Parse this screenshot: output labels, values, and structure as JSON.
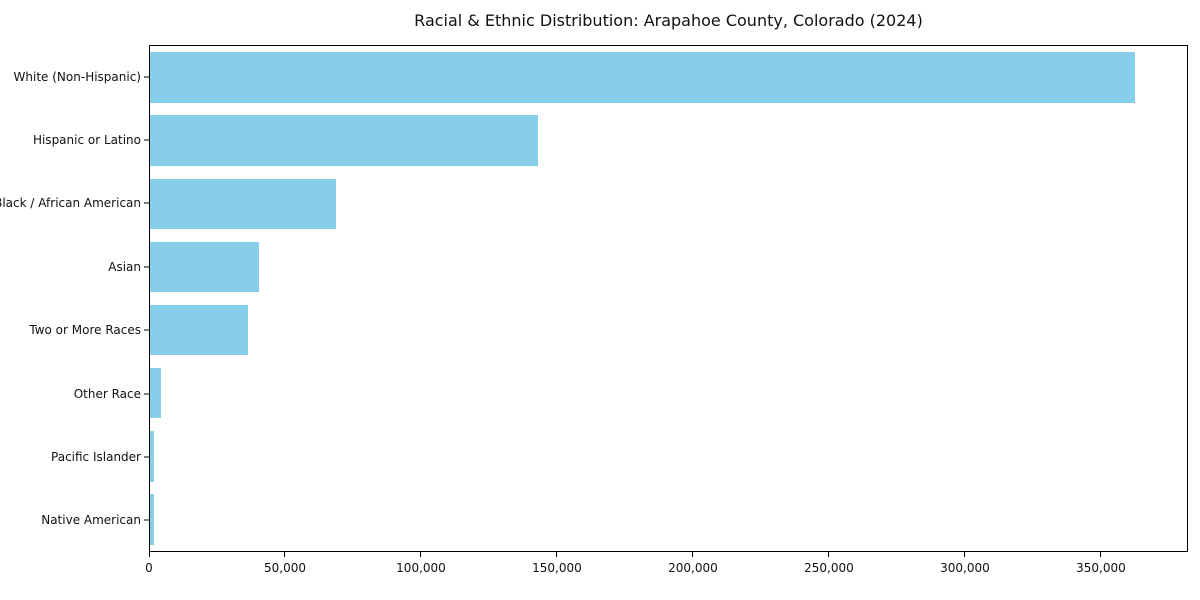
{
  "chart_data": {
    "type": "bar",
    "orientation": "horizontal",
    "title": "Racial & Ethnic Distribution: Arapahoe County, Colorado (2024)",
    "categories": [
      "White (Non-Hispanic)",
      "Hispanic or Latino",
      "Black / African American",
      "Asian",
      "Two or More Races",
      "Other Race",
      "Pacific Islander",
      "Native American"
    ],
    "values": [
      363000,
      143000,
      68500,
      40000,
      36000,
      4000,
      1500,
      1500
    ],
    "xlabel": "",
    "ylabel": "",
    "xlim": [
      0,
      382000
    ],
    "x_ticks": [
      0,
      50000,
      100000,
      150000,
      200000,
      250000,
      300000,
      350000
    ],
    "x_tick_labels": [
      "0",
      "50,000",
      "100,000",
      "150,000",
      "200,000",
      "250,000",
      "300,000",
      "350,000"
    ],
    "bar_color": "#87CEEB",
    "bar_height_fraction": 0.8,
    "grid": false,
    "legend": "none",
    "plot_border_color": "#000000",
    "background_color": "#ffffff"
  }
}
